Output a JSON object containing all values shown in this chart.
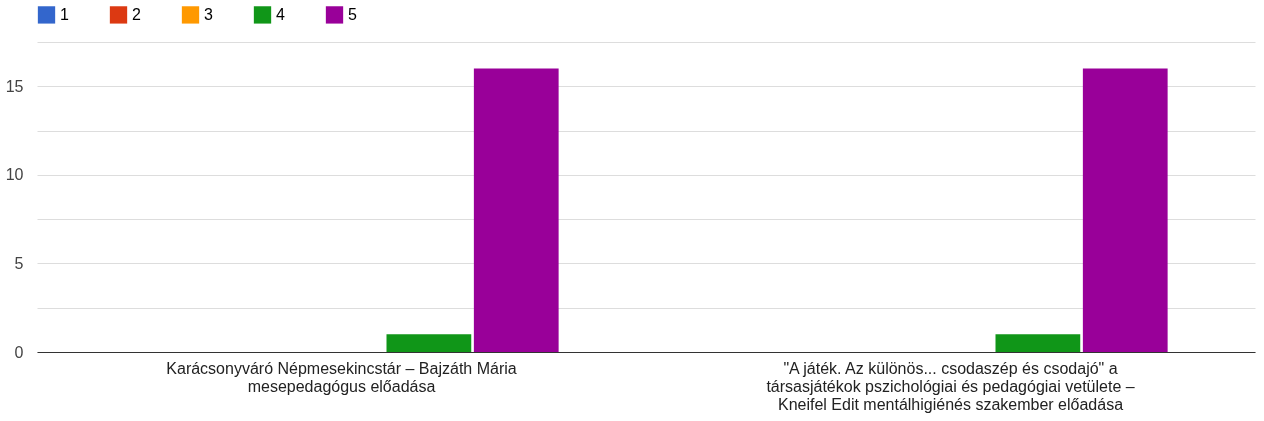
{
  "chart_data": {
    "type": "bar",
    "categories": [
      "Karácsonyváró Népmesekincstár – Bajzáth Mária mesepedagógus előadása",
      "\"A játék. Az különös... csodaszép és csodajó\" a társasjátékok pszichológiai és pedagógiai vetülete – Kneifel Edit mentálhigiénés szakember előadása"
    ],
    "series": [
      {
        "name": "1",
        "color": "#3366cc",
        "values": [
          0,
          0
        ]
      },
      {
        "name": "2",
        "color": "#dc3912",
        "values": [
          0,
          0
        ]
      },
      {
        "name": "3",
        "color": "#ff9900",
        "values": [
          0,
          0
        ]
      },
      {
        "name": "4",
        "color": "#109618",
        "values": [
          1,
          1
        ]
      },
      {
        "name": "5",
        "color": "#990099",
        "values": [
          16,
          16
        ]
      }
    ],
    "ylim": [
      0,
      17.5
    ],
    "yticks": [
      0,
      {
        "value": 2.5,
        "label": null
      },
      5,
      {
        "value": 7.5,
        "label": null
      },
      10,
      {
        "value": 12.5,
        "label": null
      },
      15,
      {
        "value": 17.5,
        "label": null
      }
    ],
    "grid": "y",
    "legend": "top left"
  }
}
